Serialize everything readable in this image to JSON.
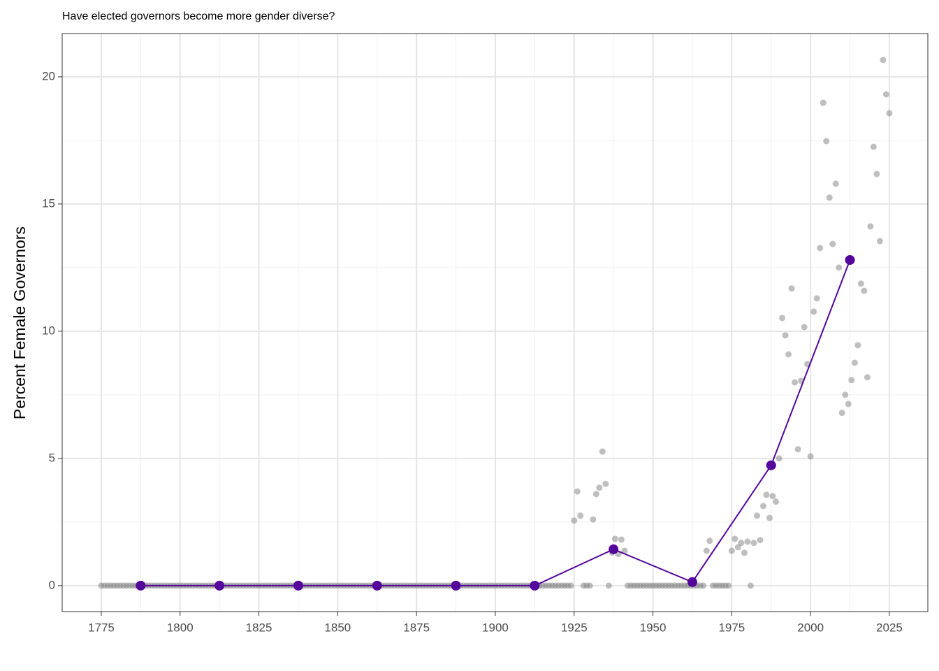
{
  "chart_data": {
    "type": "scatter",
    "title": "Have elected governors become more gender diverse?",
    "y_label": "Percent Female Governors",
    "xlim": [
      1762.6,
      2037.2
    ],
    "ylim": [
      -1.02,
      21.7
    ],
    "xticks": [
      1775,
      1800,
      1825,
      1850,
      1875,
      1900,
      1925,
      1950,
      1975,
      2000,
      2025
    ],
    "yticks": [
      0,
      5,
      10,
      15,
      20
    ],
    "xminorticks": [
      1787.5,
      1812.5,
      1837.5,
      1862.5,
      1887.5,
      1912.5,
      1937.5,
      1962.5,
      1987.5,
      2012.5
    ],
    "yminorticks": [
      2.5,
      7.5,
      12.5,
      17.5
    ],
    "grid": true,
    "series": [
      {
        "type": "scatter",
        "color": "#808080",
        "x": [
          1775,
          1776,
          1777,
          1778,
          1779,
          1780,
          1781,
          1782,
          1783,
          1784,
          1785,
          1786,
          1787,
          1788,
          1789,
          1790,
          1791,
          1792,
          1793,
          1794,
          1795,
          1796,
          1797,
          1798,
          1799,
          1800,
          1801,
          1802,
          1803,
          1804,
          1805,
          1806,
          1807,
          1808,
          1809,
          1810,
          1811,
          1812,
          1813,
          1814,
          1815,
          1816,
          1817,
          1818,
          1819,
          1820,
          1821,
          1822,
          1823,
          1824,
          1825,
          1826,
          1827,
          1828,
          1829,
          1830,
          1831,
          1832,
          1833,
          1834,
          1835,
          1836,
          1837,
          1838,
          1839,
          1840,
          1841,
          1842,
          1843,
          1844,
          1845,
          1846,
          1847,
          1848,
          1849,
          1850,
          1851,
          1852,
          1853,
          1854,
          1855,
          1856,
          1857,
          1858,
          1859,
          1860,
          1861,
          1862,
          1863,
          1864,
          1865,
          1866,
          1867,
          1868,
          1869,
          1870,
          1871,
          1872,
          1873,
          1874,
          1875,
          1876,
          1877,
          1878,
          1879,
          1880,
          1881,
          1882,
          1883,
          1884,
          1885,
          1886,
          1887,
          1888,
          1889,
          1890,
          1891,
          1892,
          1893,
          1894,
          1895,
          1896,
          1897,
          1898,
          1899,
          1900,
          1901,
          1902,
          1903,
          1904,
          1905,
          1906,
          1907,
          1908,
          1909,
          1910,
          1911,
          1912,
          1913,
          1914,
          1915,
          1916,
          1917,
          1918,
          1919,
          1920,
          1921,
          1922,
          1923,
          1924,
          1925,
          1926,
          1927,
          1928,
          1929,
          1930,
          1931,
          1932,
          1933,
          1934,
          1935,
          1936,
          1937,
          1938,
          1939,
          1940,
          1941,
          1942,
          1943,
          1944,
          1945,
          1946,
          1947,
          1948,
          1949,
          1950,
          1951,
          1952,
          1953,
          1954,
          1955,
          1956,
          1957,
          1958,
          1959,
          1960,
          1961,
          1962,
          1963,
          1964,
          1965,
          1966,
          1967,
          1968,
          1969,
          1970,
          1971,
          1972,
          1973,
          1974,
          1975,
          1976,
          1977,
          1978,
          1979,
          1980,
          1981,
          1982,
          1983,
          1984,
          1985,
          1986,
          1987,
          1988,
          1989,
          1990,
          1991,
          1992,
          1993,
          1994,
          1995,
          1996,
          1997,
          1998,
          1999,
          2000,
          2001,
          2002,
          2003,
          2004,
          2005,
          2006,
          2007,
          2008,
          2009,
          2010,
          2011,
          2012,
          2013,
          2014,
          2015,
          2016,
          2017,
          2018,
          2019,
          2020,
          2021,
          2022,
          2023,
          2024,
          2025
        ],
        "values": [
          0,
          0,
          0,
          0,
          0,
          0,
          0,
          0,
          0,
          0,
          0,
          0,
          0,
          0,
          0,
          0,
          0,
          0,
          0,
          0,
          0,
          0,
          0,
          0,
          0,
          0,
          0,
          0,
          0,
          0,
          0,
          0,
          0,
          0,
          0,
          0,
          0,
          0,
          0,
          0,
          0,
          0,
          0,
          0,
          0,
          0,
          0,
          0,
          0,
          0,
          0,
          0,
          0,
          0,
          0,
          0,
          0,
          0,
          0,
          0,
          0,
          0,
          0,
          0,
          0,
          0,
          0,
          0,
          0,
          0,
          0,
          0,
          0,
          0,
          0,
          0,
          0,
          0,
          0,
          0,
          0,
          0,
          0,
          0,
          0,
          0,
          0,
          0,
          0,
          0,
          0,
          0,
          0,
          0,
          0,
          0,
          0,
          0,
          0,
          0,
          0,
          0,
          0,
          0,
          0,
          0,
          0,
          0,
          0,
          0,
          0,
          0,
          0,
          0,
          0,
          0,
          0,
          0,
          0,
          0,
          0,
          0,
          0,
          0,
          0,
          0,
          0,
          0,
          0,
          0,
          0,
          0,
          0,
          0,
          0,
          0,
          0,
          0,
          0,
          0,
          0,
          0,
          0,
          0,
          0,
          0,
          0,
          0,
          0,
          0,
          2.56,
          3.7,
          2.75,
          0,
          0,
          0,
          2.6,
          3.6,
          3.85,
          5.27,
          4.0,
          0,
          1.3,
          1.84,
          1.24,
          1.81,
          1.37,
          0,
          0,
          0,
          0,
          0,
          0,
          0,
          0,
          0,
          0,
          0,
          0,
          0,
          0,
          0,
          0,
          0,
          0,
          0,
          0,
          0,
          0,
          0,
          0,
          0,
          1.37,
          1.76,
          0,
          0,
          0,
          0,
          0,
          0,
          1.37,
          1.84,
          1.51,
          1.68,
          1.29,
          1.73,
          0,
          1.68,
          2.75,
          1.79,
          3.13,
          3.57,
          2.66,
          3.52,
          3.3,
          5.0,
          10.52,
          9.84,
          9.09,
          11.68,
          7.99,
          5.36,
          8.05,
          10.16,
          8.71,
          5.08,
          10.77,
          11.29,
          13.27,
          18.98,
          17.47,
          15.25,
          13.43,
          15.8,
          12.5,
          6.79,
          7.5,
          7.14,
          8.08,
          8.76,
          9.45,
          11.87,
          11.59,
          8.19,
          14.12,
          17.25,
          16.18,
          13.54,
          20.66,
          19.31,
          18.57
        ]
      },
      {
        "type": "line",
        "color": "#54059c",
        "x": [
          1787.5,
          1812.5,
          1837.5,
          1862.5,
          1887.5,
          1912.5,
          1937.5,
          1962.5,
          1987.5,
          2012.5
        ],
        "values": [
          0,
          0,
          0,
          0,
          0,
          0,
          1.43,
          0.14,
          4.73,
          12.8
        ]
      }
    ]
  }
}
